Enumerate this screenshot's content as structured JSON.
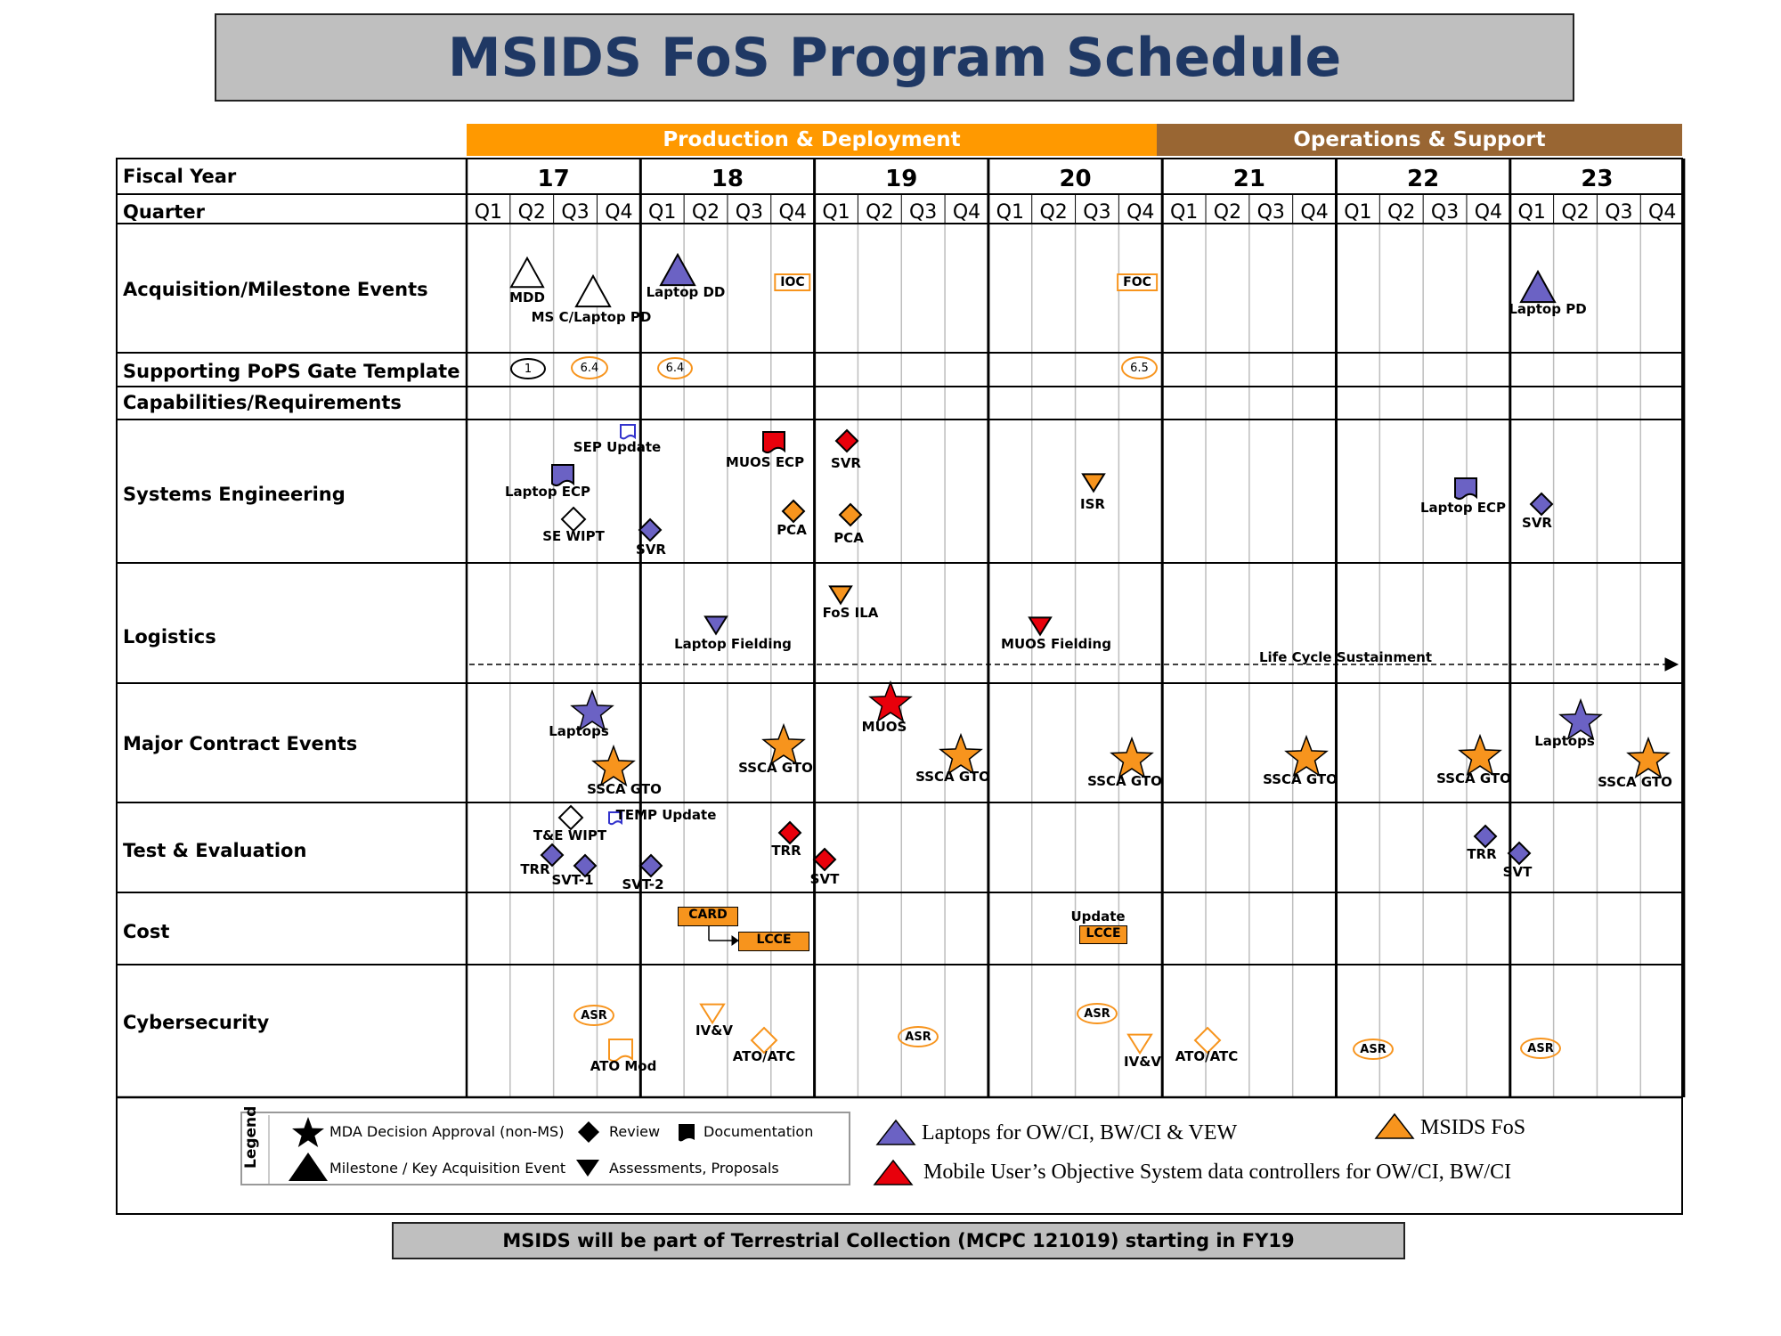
{
  "title": "MSIDS FoS Program Schedule",
  "phases": [
    {
      "label": "Production & Deployment",
      "color": "#ff9900"
    },
    {
      "label": "Operations & Support",
      "color": "#996633"
    }
  ],
  "header": {
    "fiscal_year_label": "Fiscal Year",
    "quarter_label": "Quarter"
  },
  "years": [
    "17",
    "18",
    "19",
    "20",
    "21",
    "22",
    "23"
  ],
  "quarters": [
    "Q1",
    "Q2",
    "Q3",
    "Q4"
  ],
  "rows": [
    "Acquisition/Milestone  Events",
    "Supporting  PoPS Gate Template",
    "Capabilities/Requirements",
    "Systems  Engineering",
    "Logistics",
    "Major  Contract  Events",
    "Test & Evaluation",
    "Cost",
    "Cybersecurity"
  ],
  "colors": {
    "purple": "#6b62c4",
    "orange": "#f7941d",
    "red": "#e8000b",
    "brown": "#996633"
  },
  "events": {
    "mdd": "MDD",
    "ms_c": "MS C/Laptop PD",
    "laptop_dd": "Laptop DD",
    "ioc": "IOC",
    "foc": "FOC",
    "laptop_pd": "Laptop PD",
    "gate_1": "1",
    "gate_64a": "6.4",
    "gate_64b": "6.4",
    "gate_65": "6.5",
    "sep_update": "SEP Update",
    "laptop_ecp": "Laptop ECP",
    "se_wipt": "SE WIPT",
    "svr_17": "SVR",
    "muos_ecp": "MUOS ECP",
    "pca_18": "PCA",
    "svr_19": "SVR",
    "pca_19": "PCA",
    "isr": "ISR",
    "laptop_ecp_22": "Laptop ECP",
    "svr_23": "SVR",
    "laptop_fielding": "Laptop Fielding",
    "fos_ila": "FoS  ILA",
    "muos_fielding": "MUOS Fielding",
    "life_cycle": "Life  Cycle  Sustainment",
    "laptops_17": "Laptops",
    "ssca_17": "SSCA GTO",
    "ssca_18": "SSCA GTO",
    "muos": "MUOS",
    "ssca_19": "SSCA GTO",
    "ssca_20": "SSCA GTO",
    "ssca_21": "SSCA GTO",
    "ssca_22": "SSCA GTO",
    "laptops_23": "Laptops",
    "ssca_23": "SSCA GTO",
    "te_wipt": "T&E WIPT",
    "temp_update": "TEMP Update",
    "trr_17": "TRR",
    "svt1": "SVT-1",
    "svt2": "SVT-2",
    "trr_18": "TRR",
    "svt_19": "SVT",
    "trr_22": "TRR",
    "svt_23": "SVT",
    "card": "CARD",
    "lcce_18": "LCCE",
    "update": "Update",
    "lcce_20": "LCCE",
    "asr_17": "ASR",
    "ato_mod": "ATO Mod",
    "ivv_18": "IV&V",
    "atoatc_18": "ATO/ATC",
    "asr_19": "ASR",
    "asr_20": "ASR",
    "ivv_20": "IV&V",
    "atoatc_21": "ATO/ATC",
    "asr_22": "ASR",
    "asr_23": "ASR"
  },
  "legend": {
    "title": "Legend",
    "mda": "MDA Decision Approval  (non-MS)",
    "review": "Review",
    "documentation": "Documentation",
    "milestone": "Milestone  / Key Acquisition Event",
    "assessments": "Assessments,  Proposals"
  },
  "keys": {
    "purple": "Laptops for OW/CI, BW/CI & VEW",
    "msids": "MSIDS FoS",
    "red": "Mobile User’s Objective System data controllers for OW/CI, BW/CI"
  },
  "footer": "MSIDS will be part of Terrestrial Collection (MCPC 121019) starting in FY19"
}
